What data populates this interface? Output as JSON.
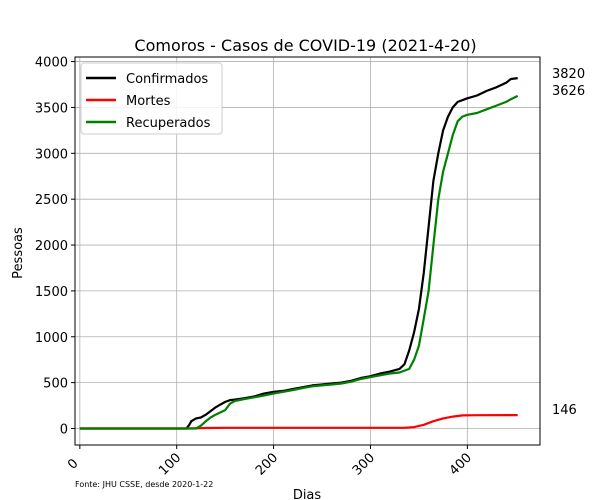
{
  "chart_data": {
    "type": "line",
    "title": "Comoros - Casos de COVID-19 (2021-4-20)",
    "xlabel": "Dias",
    "ylabel": "Pessoas",
    "xlim": [
      -5,
      475
    ],
    "ylim": [
      -180,
      4050
    ],
    "xticks": [
      0,
      100,
      200,
      300,
      400
    ],
    "yticks": [
      0,
      500,
      1000,
      1500,
      2000,
      2500,
      3000,
      3500,
      4000
    ],
    "grid": true,
    "legend_position": "top-left",
    "source_note": "Fonte: JHU CSSE, desde 2020-1-22",
    "series": [
      {
        "name": "Confirmados",
        "color": "#000000",
        "end_label": "3820",
        "points": [
          [
            0,
            0
          ],
          [
            100,
            0
          ],
          [
            110,
            0
          ],
          [
            113,
            40
          ],
          [
            115,
            80
          ],
          [
            120,
            110
          ],
          [
            125,
            120
          ],
          [
            130,
            150
          ],
          [
            135,
            190
          ],
          [
            140,
            230
          ],
          [
            145,
            260
          ],
          [
            150,
            290
          ],
          [
            155,
            310
          ],
          [
            160,
            315
          ],
          [
            170,
            330
          ],
          [
            180,
            350
          ],
          [
            190,
            380
          ],
          [
            200,
            400
          ],
          [
            210,
            410
          ],
          [
            220,
            430
          ],
          [
            230,
            450
          ],
          [
            240,
            470
          ],
          [
            250,
            480
          ],
          [
            260,
            490
          ],
          [
            270,
            500
          ],
          [
            280,
            520
          ],
          [
            290,
            550
          ],
          [
            300,
            570
          ],
          [
            310,
            600
          ],
          [
            320,
            620
          ],
          [
            330,
            650
          ],
          [
            335,
            700
          ],
          [
            340,
            850
          ],
          [
            345,
            1050
          ],
          [
            350,
            1300
          ],
          [
            355,
            1700
          ],
          [
            360,
            2200
          ],
          [
            365,
            2700
          ],
          [
            370,
            3000
          ],
          [
            375,
            3250
          ],
          [
            380,
            3400
          ],
          [
            385,
            3500
          ],
          [
            390,
            3560
          ],
          [
            400,
            3600
          ],
          [
            410,
            3630
          ],
          [
            420,
            3680
          ],
          [
            430,
            3720
          ],
          [
            440,
            3770
          ],
          [
            445,
            3810
          ],
          [
            452,
            3820
          ]
        ]
      },
      {
        "name": "Mortes",
        "color": "#ff0000",
        "end_label": "146",
        "points": [
          [
            0,
            0
          ],
          [
            110,
            0
          ],
          [
            120,
            2
          ],
          [
            130,
            5
          ],
          [
            150,
            7
          ],
          [
            200,
            7
          ],
          [
            250,
            7
          ],
          [
            300,
            7
          ],
          [
            335,
            7
          ],
          [
            345,
            15
          ],
          [
            355,
            40
          ],
          [
            365,
            80
          ],
          [
            375,
            110
          ],
          [
            385,
            130
          ],
          [
            395,
            143
          ],
          [
            410,
            145
          ],
          [
            452,
            146
          ]
        ]
      },
      {
        "name": "Recuperados",
        "color": "#008000",
        "end_label": "3626",
        "points": [
          [
            0,
            0
          ],
          [
            100,
            0
          ],
          [
            120,
            0
          ],
          [
            125,
            30
          ],
          [
            130,
            80
          ],
          [
            135,
            120
          ],
          [
            140,
            150
          ],
          [
            150,
            200
          ],
          [
            155,
            270
          ],
          [
            160,
            300
          ],
          [
            170,
            320
          ],
          [
            180,
            340
          ],
          [
            190,
            360
          ],
          [
            200,
            380
          ],
          [
            210,
            400
          ],
          [
            220,
            420
          ],
          [
            230,
            440
          ],
          [
            240,
            460
          ],
          [
            250,
            470
          ],
          [
            260,
            480
          ],
          [
            270,
            490
          ],
          [
            280,
            510
          ],
          [
            290,
            540
          ],
          [
            300,
            560
          ],
          [
            310,
            580
          ],
          [
            320,
            600
          ],
          [
            330,
            610
          ],
          [
            340,
            650
          ],
          [
            345,
            750
          ],
          [
            350,
            900
          ],
          [
            355,
            1200
          ],
          [
            360,
            1500
          ],
          [
            365,
            2000
          ],
          [
            370,
            2500
          ],
          [
            375,
            2800
          ],
          [
            380,
            3000
          ],
          [
            385,
            3200
          ],
          [
            390,
            3350
          ],
          [
            395,
            3400
          ],
          [
            400,
            3420
          ],
          [
            410,
            3440
          ],
          [
            420,
            3480
          ],
          [
            430,
            3520
          ],
          [
            440,
            3560
          ],
          [
            445,
            3590
          ],
          [
            452,
            3626
          ]
        ]
      }
    ]
  }
}
